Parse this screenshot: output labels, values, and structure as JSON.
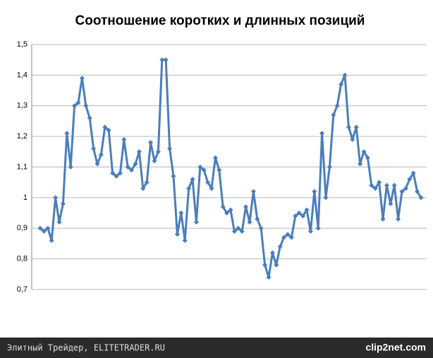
{
  "chart_data": {
    "type": "line",
    "title": "Соотношение коротких и длинных позиций",
    "series": [
      {
        "color": "#4a7ebb",
        "values": [
          0.9,
          0.89,
          0.9,
          0.86,
          1.0,
          0.92,
          0.98,
          1.21,
          1.1,
          1.3,
          1.31,
          1.39,
          1.3,
          1.26,
          1.16,
          1.11,
          1.14,
          1.23,
          1.22,
          1.08,
          1.07,
          1.08,
          1.19,
          1.1,
          1.09,
          1.11,
          1.15,
          1.03,
          1.05,
          1.18,
          1.12,
          1.15,
          1.45,
          1.45,
          1.16,
          1.07,
          0.88,
          0.95,
          0.86,
          1.03,
          1.06,
          0.92,
          1.1,
          1.09,
          1.05,
          1.03,
          1.13,
          1.09,
          0.97,
          0.95,
          0.96,
          0.89,
          0.9,
          0.89,
          0.97,
          0.92,
          1.02,
          0.93,
          0.9,
          0.78,
          0.74,
          0.82,
          0.78,
          0.84,
          0.87,
          0.88,
          0.87,
          0.94,
          0.95,
          0.94,
          0.96,
          0.89,
          1.02,
          0.9,
          1.21,
          1.0,
          1.1,
          1.27,
          1.3,
          1.37,
          1.4,
          1.23,
          1.19,
          1.23,
          1.11,
          1.15,
          1.13,
          1.04,
          1.03,
          1.05,
          0.93,
          1.04,
          0.98,
          1.04,
          0.93,
          1.02,
          1.03,
          1.06,
          1.08,
          1.02,
          1.0
        ]
      }
    ],
    "ylim": [
      0.7,
      1.5
    ],
    "yticks": [
      {
        "value": 0.7,
        "label": "0,7"
      },
      {
        "value": 0.8,
        "label": "0,8"
      },
      {
        "value": 0.9,
        "label": "0,9"
      },
      1,
      {
        "value": 1.1,
        "label": "1,1"
      },
      {
        "value": 1.2,
        "label": "1,2"
      },
      {
        "value": 1.3,
        "label": "1,3"
      },
      {
        "value": 1.4,
        "label": "1,4"
      },
      {
        "value": 1.5,
        "label": "1,5"
      }
    ],
    "grid": true
  },
  "footer": {
    "left": "Элитный Трейдер, ELITETRADER.RU",
    "right": "clip2net.com"
  }
}
